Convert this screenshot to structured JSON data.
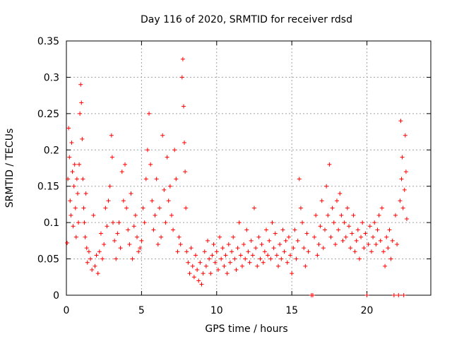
{
  "chart_data": {
    "type": "scatter",
    "title": "Day 116 of 2020, SRMTID for receiver rdsd",
    "xlabel": "GPS time / hours",
    "ylabel": "SRMTID / TECUs",
    "xlim": [
      0,
      24.25
    ],
    "ylim": [
      0,
      0.35
    ],
    "x_ticks": [
      0,
      5,
      10,
      15,
      20
    ],
    "x_tick_labels": [
      "0",
      "5",
      "10",
      "15",
      "20"
    ],
    "y_ticks": [
      0,
      0.05,
      0.1,
      0.15,
      0.2,
      0.25,
      0.3,
      0.35
    ],
    "y_tick_labels": [
      "0",
      "0.05",
      "0.1",
      "0.15",
      "0.2",
      "0.25",
      "0.3",
      "0.35"
    ],
    "grid": true,
    "marker": "+",
    "color": "#ff0000",
    "series": [
      {
        "name": "SRMTID",
        "points": [
          [
            0.05,
            0.072
          ],
          [
            0.1,
            0.16
          ],
          [
            0.15,
            0.23
          ],
          [
            0.2,
            0.19
          ],
          [
            0.25,
            0.13
          ],
          [
            0.3,
            0.11
          ],
          [
            0.35,
            0.21
          ],
          [
            0.4,
            0.17
          ],
          [
            0.45,
            0.095
          ],
          [
            0.5,
            0.15
          ],
          [
            0.55,
            0.18
          ],
          [
            0.6,
            0.12
          ],
          [
            0.65,
            0.08
          ],
          [
            0.7,
            0.16
          ],
          [
            0.75,
            0.14
          ],
          [
            0.8,
            0.1
          ],
          [
            0.85,
            0.18
          ],
          [
            0.9,
            0.25
          ],
          [
            0.95,
            0.29
          ],
          [
            1.0,
            0.265
          ],
          [
            1.05,
            0.215
          ],
          [
            1.1,
            0.16
          ],
          [
            1.15,
            0.12
          ],
          [
            1.2,
            0.1
          ],
          [
            1.25,
            0.08
          ],
          [
            1.3,
            0.14
          ],
          [
            1.35,
            0.065
          ],
          [
            1.4,
            0.045
          ],
          [
            1.5,
            0.06
          ],
          [
            1.6,
            0.05
          ],
          [
            1.7,
            0.035
          ],
          [
            1.8,
            0.11
          ],
          [
            1.9,
            0.04
          ],
          [
            2.0,
            0.055
          ],
          [
            2.1,
            0.03
          ],
          [
            2.2,
            0.06
          ],
          [
            2.3,
            0.085
          ],
          [
            2.4,
            0.05
          ],
          [
            2.5,
            0.07
          ],
          [
            2.6,
            0.12
          ],
          [
            2.7,
            0.095
          ],
          [
            2.8,
            0.13
          ],
          [
            2.9,
            0.15
          ],
          [
            3.0,
            0.22
          ],
          [
            3.05,
            0.19
          ],
          [
            3.1,
            0.1
          ],
          [
            3.2,
            0.075
          ],
          [
            3.3,
            0.05
          ],
          [
            3.4,
            0.085
          ],
          [
            3.5,
            0.1
          ],
          [
            3.6,
            0.065
          ],
          [
            3.7,
            0.17
          ],
          [
            3.8,
            0.13
          ],
          [
            3.9,
            0.18
          ],
          [
            4.0,
            0.12
          ],
          [
            4.1,
            0.09
          ],
          [
            4.2,
            0.07
          ],
          [
            4.3,
            0.14
          ],
          [
            4.4,
            0.05
          ],
          [
            4.5,
            0.095
          ],
          [
            4.6,
            0.11
          ],
          [
            4.7,
            0.08
          ],
          [
            4.8,
            0.06
          ],
          [
            4.9,
            0.065
          ],
          [
            5.0,
            0.075
          ],
          [
            5.1,
            0.12
          ],
          [
            5.2,
            0.1
          ],
          [
            5.3,
            0.16
          ],
          [
            5.4,
            0.2
          ],
          [
            5.5,
            0.25
          ],
          [
            5.6,
            0.18
          ],
          [
            5.7,
            0.13
          ],
          [
            5.8,
            0.09
          ],
          [
            5.9,
            0.11
          ],
          [
            6.0,
            0.16
          ],
          [
            6.1,
            0.07
          ],
          [
            6.2,
            0.12
          ],
          [
            6.3,
            0.08
          ],
          [
            6.4,
            0.22
          ],
          [
            6.5,
            0.145
          ],
          [
            6.6,
            0.1
          ],
          [
            6.7,
            0.19
          ],
          [
            6.8,
            0.13
          ],
          [
            6.9,
            0.15
          ],
          [
            7.0,
            0.11
          ],
          [
            7.1,
            0.09
          ],
          [
            7.2,
            0.2
          ],
          [
            7.3,
            0.16
          ],
          [
            7.4,
            0.06
          ],
          [
            7.5,
            0.08
          ],
          [
            7.6,
            0.07
          ],
          [
            7.7,
            0.3
          ],
          [
            7.75,
            0.325
          ],
          [
            7.8,
            0.26
          ],
          [
            7.85,
            0.21
          ],
          [
            7.9,
            0.17
          ],
          [
            7.95,
            0.12
          ],
          [
            8.0,
            0.06
          ],
          [
            8.1,
            0.045
          ],
          [
            8.2,
            0.03
          ],
          [
            8.3,
            0.065
          ],
          [
            8.4,
            0.04
          ],
          [
            8.5,
            0.025
          ],
          [
            8.6,
            0.055
          ],
          [
            8.7,
            0.035
          ],
          [
            8.8,
            0.02
          ],
          [
            8.9,
            0.045
          ],
          [
            9.0,
            0.015
          ],
          [
            9.1,
            0.03
          ],
          [
            9.2,
            0.06
          ],
          [
            9.3,
            0.04
          ],
          [
            9.4,
            0.075
          ],
          [
            9.5,
            0.05
          ],
          [
            9.6,
            0.03
          ],
          [
            9.7,
            0.055
          ],
          [
            9.8,
            0.07
          ],
          [
            9.9,
            0.045
          ],
          [
            10.0,
            0.06
          ],
          [
            10.1,
            0.035
          ],
          [
            10.2,
            0.08
          ],
          [
            10.3,
            0.05
          ],
          [
            10.4,
            0.065
          ],
          [
            10.5,
            0.04
          ],
          [
            10.6,
            0.055
          ],
          [
            10.7,
            0.03
          ],
          [
            10.8,
            0.07
          ],
          [
            10.9,
            0.045
          ],
          [
            11.0,
            0.06
          ],
          [
            11.1,
            0.08
          ],
          [
            11.2,
            0.05
          ],
          [
            11.3,
            0.035
          ],
          [
            11.4,
            0.065
          ],
          [
            11.5,
            0.1
          ],
          [
            11.6,
            0.055
          ],
          [
            11.7,
            0.04
          ],
          [
            11.8,
            0.07
          ],
          [
            11.9,
            0.05
          ],
          [
            12.0,
            0.09
          ],
          [
            12.1,
            0.06
          ],
          [
            12.2,
            0.045
          ],
          [
            12.3,
            0.075
          ],
          [
            12.4,
            0.055
          ],
          [
            12.5,
            0.12
          ],
          [
            12.6,
            0.065
          ],
          [
            12.7,
            0.04
          ],
          [
            12.8,
            0.08
          ],
          [
            12.9,
            0.05
          ],
          [
            13.0,
            0.07
          ],
          [
            13.1,
            0.045
          ],
          [
            13.2,
            0.06
          ],
          [
            13.3,
            0.09
          ],
          [
            13.4,
            0.055
          ],
          [
            13.5,
            0.075
          ],
          [
            13.6,
            0.05
          ],
          [
            13.7,
            0.1
          ],
          [
            13.8,
            0.065
          ],
          [
            13.9,
            0.085
          ],
          [
            14.0,
            0.055
          ],
          [
            14.1,
            0.04
          ],
          [
            14.2,
            0.07
          ],
          [
            14.3,
            0.05
          ],
          [
            14.4,
            0.09
          ],
          [
            14.5,
            0.06
          ],
          [
            14.6,
            0.075
          ],
          [
            14.7,
            0.045
          ],
          [
            14.8,
            0.08
          ],
          [
            14.9,
            0.055
          ],
          [
            15.0,
            0.03
          ],
          [
            15.1,
            0.065
          ],
          [
            15.2,
            0.09
          ],
          [
            15.3,
            0.05
          ],
          [
            15.4,
            0.075
          ],
          [
            15.5,
            0.16
          ],
          [
            15.6,
            0.12
          ],
          [
            15.7,
            0.1
          ],
          [
            15.8,
            0.065
          ],
          [
            15.9,
            0.04
          ],
          [
            16.0,
            0.085
          ],
          [
            16.1,
            0.06
          ],
          [
            16.3,
            0.0
          ],
          [
            16.4,
            0.0
          ],
          [
            16.5,
            0.08
          ],
          [
            16.6,
            0.11
          ],
          [
            16.7,
            0.055
          ],
          [
            16.8,
            0.07
          ],
          [
            16.9,
            0.095
          ],
          [
            17.0,
            0.13
          ],
          [
            17.1,
            0.065
          ],
          [
            17.2,
            0.09
          ],
          [
            17.3,
            0.15
          ],
          [
            17.4,
            0.11
          ],
          [
            17.5,
            0.18
          ],
          [
            17.6,
            0.08
          ],
          [
            17.7,
            0.12
          ],
          [
            17.8,
            0.1
          ],
          [
            17.9,
            0.07
          ],
          [
            18.0,
            0.13
          ],
          [
            18.1,
            0.09
          ],
          [
            18.2,
            0.14
          ],
          [
            18.3,
            0.11
          ],
          [
            18.4,
            0.075
          ],
          [
            18.5,
            0.1
          ],
          [
            18.6,
            0.08
          ],
          [
            18.7,
            0.12
          ],
          [
            18.8,
            0.095
          ],
          [
            18.9,
            0.065
          ],
          [
            19.0,
            0.085
          ],
          [
            19.1,
            0.11
          ],
          [
            19.2,
            0.06
          ],
          [
            19.3,
            0.075
          ],
          [
            19.4,
            0.09
          ],
          [
            19.5,
            0.05
          ],
          [
            19.6,
            0.08
          ],
          [
            19.7,
            0.1
          ],
          [
            19.8,
            0.065
          ],
          [
            19.9,
            0.085
          ],
          [
            20.0,
            0.0
          ],
          [
            20.1,
            0.07
          ],
          [
            20.2,
            0.095
          ],
          [
            20.3,
            0.06
          ],
          [
            20.4,
            0.08
          ],
          [
            20.5,
            0.1
          ],
          [
            20.6,
            0.07
          ],
          [
            20.7,
            0.09
          ],
          [
            20.8,
            0.11
          ],
          [
            20.9,
            0.075
          ],
          [
            21.0,
            0.12
          ],
          [
            21.1,
            0.06
          ],
          [
            21.2,
            0.04
          ],
          [
            21.3,
            0.08
          ],
          [
            21.4,
            0.065
          ],
          [
            21.5,
            0.09
          ],
          [
            21.6,
            0.05
          ],
          [
            21.7,
            0.075
          ],
          [
            21.8,
            0.0
          ],
          [
            21.9,
            0.11
          ],
          [
            22.0,
            0.07
          ],
          [
            22.1,
            0.0
          ],
          [
            22.2,
            0.13
          ],
          [
            22.25,
            0.24
          ],
          [
            22.3,
            0.16
          ],
          [
            22.35,
            0.19
          ],
          [
            22.4,
            0.12
          ],
          [
            22.45,
            0.0
          ],
          [
            22.5,
            0.145
          ],
          [
            22.55,
            0.22
          ],
          [
            22.6,
            0.17
          ],
          [
            22.65,
            0.105
          ]
        ]
      }
    ]
  }
}
